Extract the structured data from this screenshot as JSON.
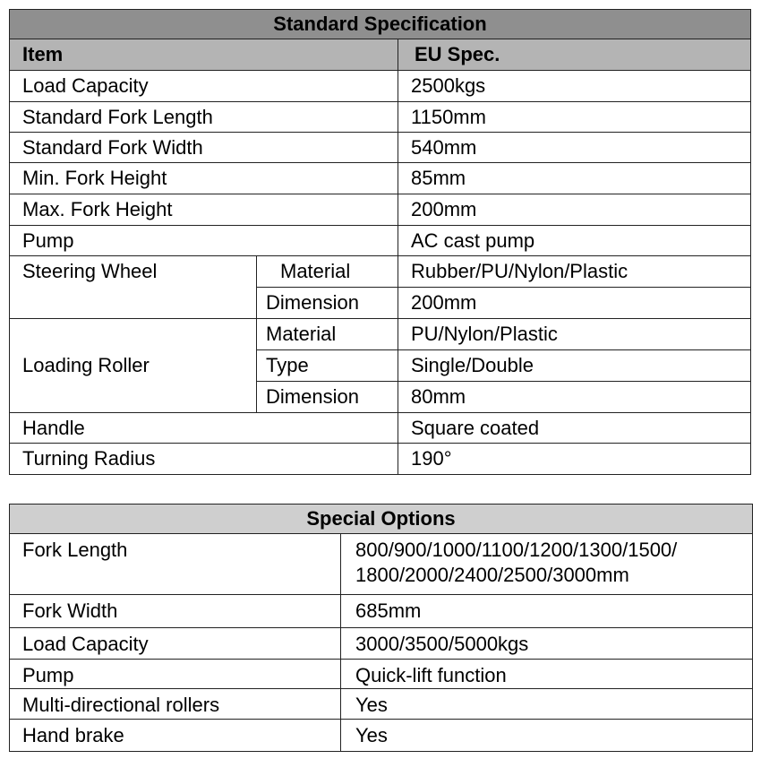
{
  "standard": {
    "title": "Standard Specification",
    "header": {
      "item": "Item",
      "spec": "EU  Spec."
    },
    "rows": [
      {
        "item": "Load Capacity",
        "value": "2500kgs"
      },
      {
        "item": "Standard Fork Length",
        "value": "1150mm"
      },
      {
        "item": "Standard Fork Width",
        "value": "540mm"
      },
      {
        "item": "Min. Fork Height",
        "value": "85mm"
      },
      {
        "item": "Max. Fork Height",
        "value": "200mm"
      },
      {
        "item": "Pump",
        "value": "AC cast pump"
      }
    ],
    "steering": {
      "item": "Steering Wheel",
      "sub": [
        {
          "label": "Material",
          "value": "Rubber/PU/Nylon/Plastic"
        },
        {
          "label": "Dimension",
          "value": "200mm"
        }
      ]
    },
    "roller": {
      "item": "Loading Roller",
      "sub": [
        {
          "label": "Material",
          "value": "PU/Nylon/Plastic"
        },
        {
          "label": "Type",
          "value": "Single/Double"
        },
        {
          "label": "Dimension",
          "value": "80mm"
        }
      ]
    },
    "tail": [
      {
        "item": "Handle",
        "value": "Square coated"
      },
      {
        "item": "Turning Radius",
        "value": "190°"
      }
    ]
  },
  "special": {
    "title": "Special Options",
    "rows": [
      {
        "item": "Fork Length",
        "value": "800/900/1000/1100/1200/1300/1500/",
        "value2": "1800/2000/2400/2500/3000mm"
      },
      {
        "item": "Fork Width",
        "value": "685mm"
      },
      {
        "item": "Load Capacity",
        "value": "3000/3500/5000kgs"
      },
      {
        "item": "Pump",
        "value": "Quick-lift function"
      },
      {
        "item": "Multi-directional rollers",
        "value": "Yes"
      },
      {
        "item": "Hand brake",
        "value": "Yes"
      }
    ]
  }
}
